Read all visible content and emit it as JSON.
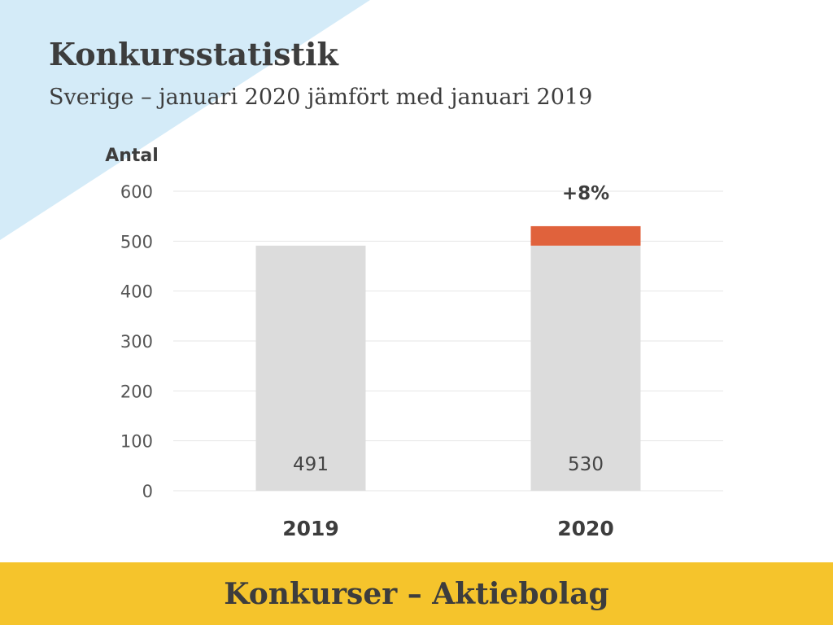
{
  "slide": {
    "title": "Konkursstatistik",
    "subtitle": "Sverige – januari 2020 jämfört med januari 2019",
    "footer": "Konkurser – Aktiebolag"
  },
  "colors": {
    "corner": "#d4ebf8",
    "bar_base": "#dcdcdc",
    "bar_increase": "#e0623c",
    "footer_band": "#f5c42c",
    "text": "#3d3d3d",
    "grid": "#e6e6e6"
  },
  "chart_data": {
    "type": "bar",
    "stacked": true,
    "ylabel": "Antal",
    "ylim": [
      0,
      600
    ],
    "yticks": [
      0,
      100,
      200,
      300,
      400,
      500,
      600
    ],
    "grid": true,
    "categories": [
      "2019",
      "2020"
    ],
    "series": [
      {
        "name": "",
        "color": "#dcdcdc",
        "values": [
          491,
          491
        ]
      },
      {
        "name": "",
        "color": "#e0623c",
        "values": [
          0,
          39
        ]
      }
    ],
    "data_labels": [
      "491",
      "530"
    ],
    "annotation": {
      "category": "2020",
      "text": "+8%"
    }
  }
}
